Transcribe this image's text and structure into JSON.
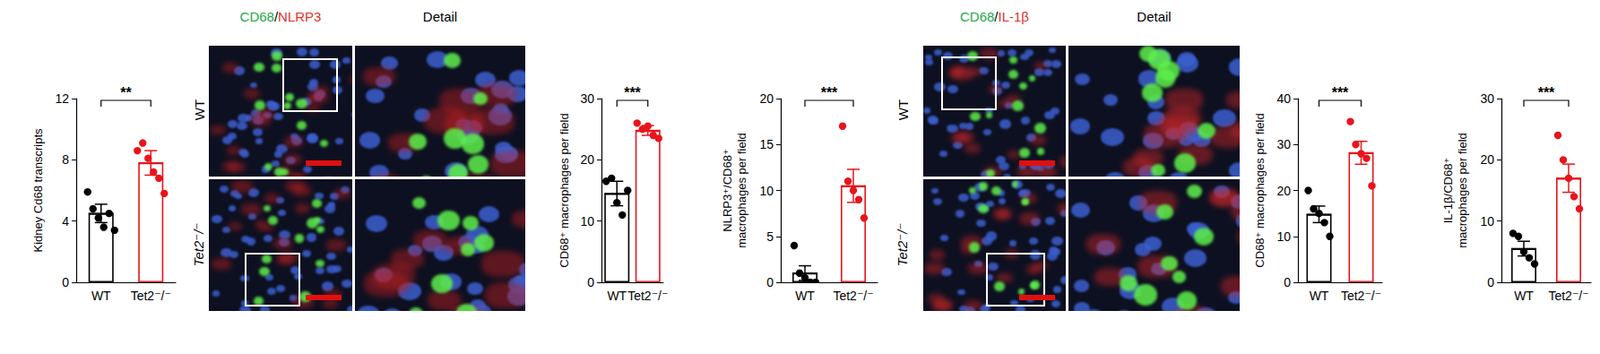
{
  "chart_data": [
    {
      "type": "bar",
      "y_label": "Kidney Cd68 transcripts",
      "categories": [
        "WT",
        "Tet2⁻/⁻"
      ],
      "values": [
        4.5,
        7.8
      ],
      "errors": [
        0.6,
        0.8
      ],
      "points": [
        [
          5.9,
          4.8,
          4.2,
          3.6,
          4.5,
          3.4
        ],
        [
          8.6,
          9.1,
          8.1,
          7.2,
          6.8,
          5.8
        ]
      ],
      "colors": [
        "#000000",
        "#e8141c"
      ],
      "ylim": [
        0,
        12
      ],
      "yticks": [
        0,
        4,
        8,
        12
      ],
      "significance": "**"
    },
    {
      "type": "bar",
      "y_label": "CD68⁺ macrophages per field",
      "categories": [
        "WT",
        "Tet2⁻/⁻"
      ],
      "values": [
        14.5,
        24.8
      ],
      "errors": [
        2.0,
        0.8
      ],
      "points": [
        [
          16.5,
          17,
          13,
          11,
          15
        ],
        [
          26,
          25,
          25.5,
          24,
          23.5
        ]
      ],
      "colors": [
        "#000000",
        "#e8141c"
      ],
      "ylim": [
        0,
        30
      ],
      "yticks": [
        0,
        10,
        20,
        30
      ],
      "significance": "***"
    },
    {
      "type": "bar",
      "y_label": "NLRP3⁺/CD68⁺\nmacrophages per field",
      "categories": [
        "WT",
        "Tet2⁻/⁻"
      ],
      "values": [
        1.0,
        10.5
      ],
      "errors": [
        0.8,
        1.8
      ],
      "points": [
        [
          4,
          1,
          0.5,
          0,
          0
        ],
        [
          17,
          11,
          10,
          9,
          7
        ]
      ],
      "colors": [
        "#000000",
        "#e8141c"
      ],
      "ylim": [
        0,
        20
      ],
      "yticks": [
        0,
        5,
        10,
        15,
        20
      ],
      "significance": "***"
    },
    {
      "type": "bar",
      "y_label": "CD68⁺ macrophages per field",
      "categories": [
        "WT",
        "Tet2⁻/⁻"
      ],
      "values": [
        14.8,
        28.2
      ],
      "errors": [
        1.8,
        2.5
      ],
      "points": [
        [
          20,
          16,
          15,
          13,
          10
        ],
        [
          35,
          30,
          28,
          27,
          21
        ]
      ],
      "colors": [
        "#000000",
        "#e8141c"
      ],
      "ylim": [
        0,
        40
      ],
      "yticks": [
        0,
        10,
        20,
        30,
        40
      ],
      "significance": "***"
    },
    {
      "type": "bar",
      "y_label": "IL-1β/CD68⁺\nmacrophages per field",
      "categories": [
        "WT",
        "Tet2⁻/⁻"
      ],
      "values": [
        5.5,
        17.0
      ],
      "errors": [
        1.2,
        2.3
      ],
      "points": [
        [
          8,
          7.5,
          5,
          4,
          3
        ],
        [
          24,
          20,
          17,
          14,
          12
        ]
      ],
      "colors": [
        "#000000",
        "#e8141c"
      ],
      "ylim": [
        0,
        30
      ],
      "yticks": [
        0,
        10,
        20,
        30
      ],
      "significance": "***"
    }
  ],
  "image_panels": [
    {
      "stain": [
        "CD68",
        "NLRP3"
      ],
      "detail": "Detail",
      "rows": [
        "WT",
        "Tet2⁻/⁻"
      ]
    },
    {
      "stain": [
        "CD68",
        "IL-1β"
      ],
      "detail": "Detail",
      "rows": [
        "WT",
        "Tet2⁻/⁻"
      ]
    }
  ]
}
